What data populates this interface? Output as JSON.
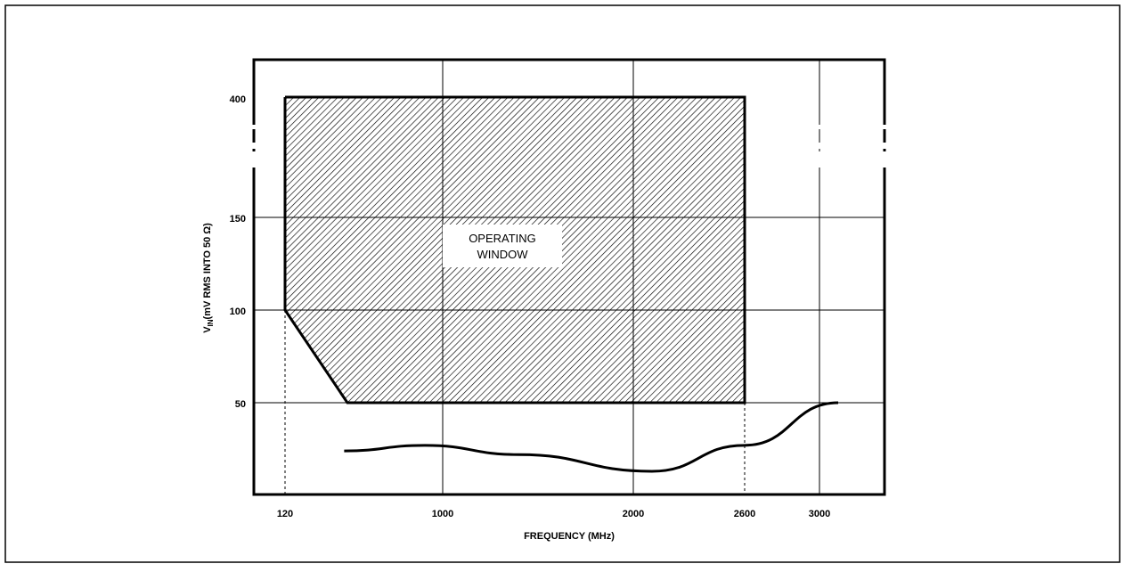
{
  "chart_data": {
    "type": "area",
    "xlabel": "FREQUENCY (MHz)",
    "ylabel_main": "V",
    "ylabel_sub": "IN",
    "ylabel_rest": "(mV RMS INTO 50 Ω)",
    "x_ticks": [
      "120",
      "1000",
      "2000",
      "2600",
      "3000"
    ],
    "y_ticks": [
      "400",
      "150",
      "100",
      "50"
    ],
    "grid": true,
    "region": {
      "label_lines": [
        "OPERATING",
        "WINDOW"
      ],
      "fill_pattern": "diagonal-hatch",
      "boundary": [
        {
          "x": "120",
          "y": "400"
        },
        {
          "x": "2600",
          "y": "400"
        },
        {
          "x": "2600",
          "y": "50"
        },
        {
          "x": "~450",
          "y": "50"
        },
        {
          "x": "120",
          "y": "100"
        }
      ]
    },
    "series": [
      {
        "type": "line",
        "description_points": [
          {
            "x": 450,
            "y": 24
          },
          {
            "x": 900,
            "y": 27
          },
          {
            "x": 1400,
            "y": 22
          },
          {
            "x": 2100,
            "y": 13
          },
          {
            "x": 2600,
            "y": 27
          },
          {
            "x": 3100,
            "y": 50
          }
        ]
      }
    ]
  }
}
